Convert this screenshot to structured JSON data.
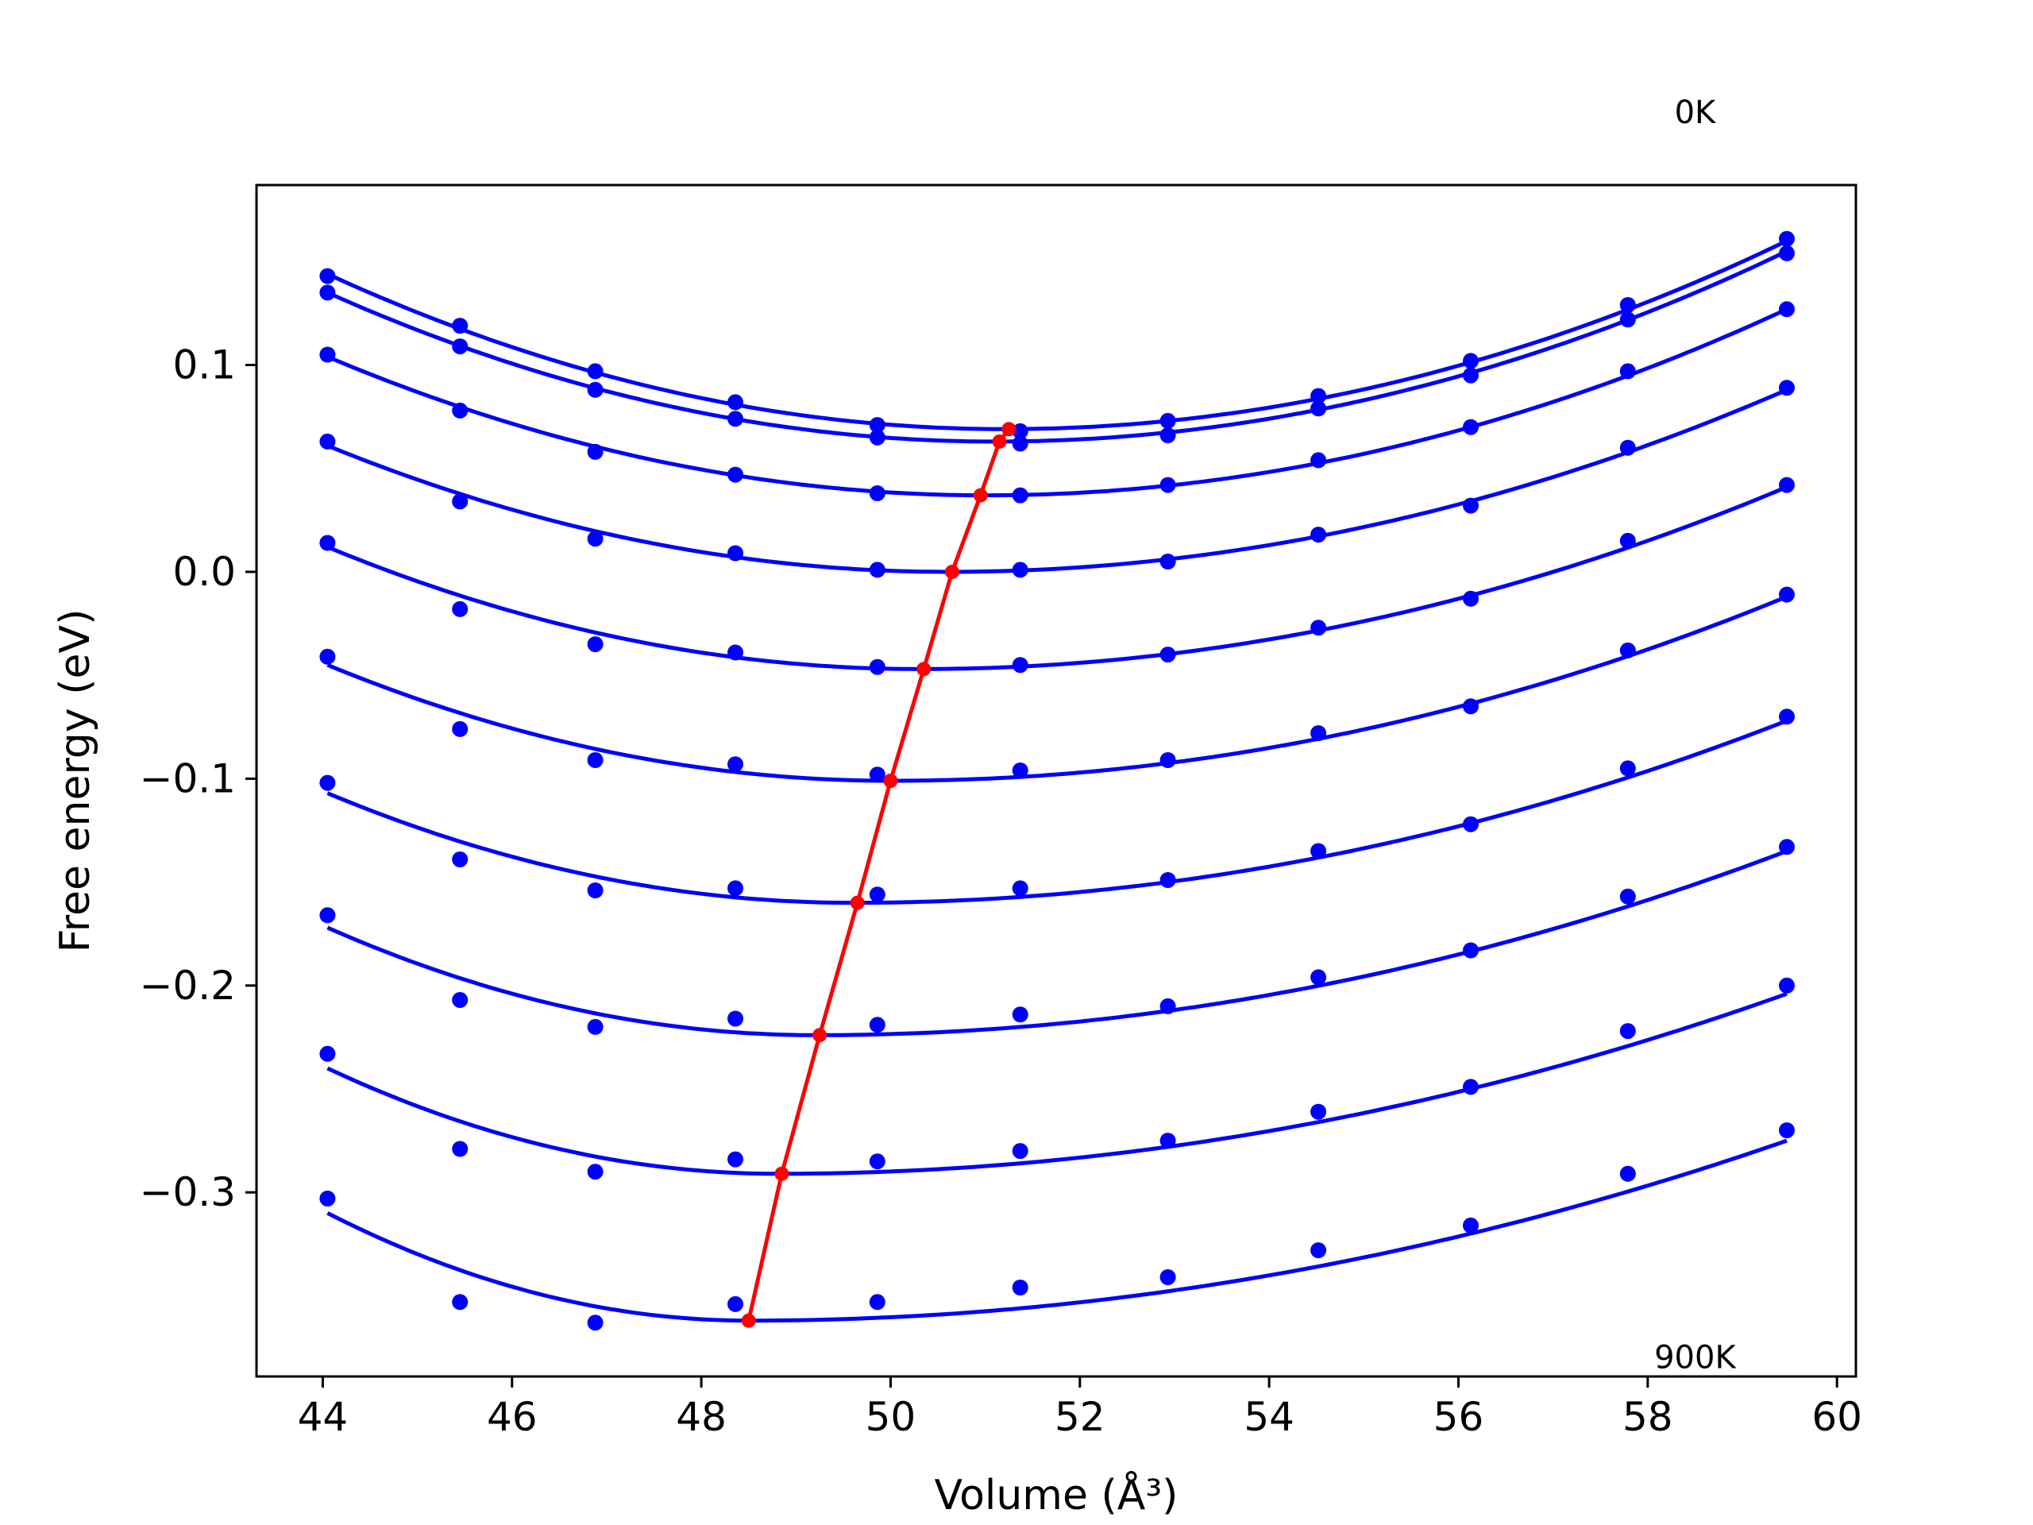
{
  "chart_data": {
    "type": "line",
    "xlabel": "Volume (Å³)",
    "ylabel": "Free energy (eV)",
    "xlim": [
      43.3,
      60.2
    ],
    "ylim": [
      -0.389,
      0.187
    ],
    "xticks": [
      44,
      46,
      48,
      50,
      52,
      54,
      56,
      58,
      60
    ],
    "xtick_labels": [
      "44",
      "46",
      "48",
      "50",
      "52",
      "54",
      "56",
      "58",
      "60"
    ],
    "yticks": [
      -0.3,
      -0.2,
      -0.1,
      0.0,
      0.1
    ],
    "ytick_labels": [
      "−0.3",
      "−0.2",
      "−0.1",
      "0.0",
      "0.1"
    ],
    "grid": false,
    "annotations": [
      {
        "text": "0K",
        "x": 58.5,
        "y": 0.217
      },
      {
        "text": "900K",
        "x": 58.5,
        "y": -0.385
      }
    ],
    "colors": {
      "curves": "#0000ff",
      "points": "#0000ff",
      "minimum_line": "#ff0000"
    },
    "volumes": [
      44.05,
      45.45,
      46.88,
      48.36,
      49.86,
      51.37,
      52.93,
      54.52,
      56.13,
      57.79,
      59.47
    ],
    "series": [
      {
        "values": [
          0.143,
          0.119,
          0.097,
          0.082,
          0.071,
          0.068,
          0.073,
          0.085,
          0.102,
          0.129,
          0.161
        ],
        "fit_min": [
          51.2,
          0.069
        ],
        "fit_ends": [
          0.144,
          0.16
        ]
      },
      {
        "values": [
          0.135,
          0.109,
          0.088,
          0.074,
          0.065,
          0.062,
          0.066,
          0.079,
          0.095,
          0.122,
          0.154
        ],
        "fit_min": [
          51.1,
          0.063
        ],
        "fit_ends": [
          0.135,
          0.155
        ]
      },
      {
        "values": [
          0.105,
          0.078,
          0.058,
          0.047,
          0.038,
          0.037,
          0.042,
          0.054,
          0.07,
          0.097,
          0.127
        ],
        "fit_min": [
          51.0,
          0.037
        ],
        "fit_ends": [
          0.104,
          0.127
        ]
      },
      {
        "values": [
          0.063,
          0.034,
          0.016,
          0.009,
          0.001,
          0.001,
          0.005,
          0.018,
          0.032,
          0.06,
          0.089
        ],
        "fit_min": [
          50.6,
          0.0
        ],
        "fit_ends": [
          0.061,
          0.088
        ]
      },
      {
        "values": [
          0.014,
          -0.018,
          -0.035,
          -0.039,
          -0.046,
          -0.045,
          -0.04,
          -0.027,
          -0.013,
          0.015,
          0.042
        ],
        "fit_min": [
          50.3,
          -0.047
        ],
        "fit_ends": [
          0.012,
          0.041
        ]
      },
      {
        "values": [
          -0.041,
          -0.076,
          -0.091,
          -0.093,
          -0.098,
          -0.096,
          -0.091,
          -0.078,
          -0.065,
          -0.038,
          -0.011
        ],
        "fit_min": [
          50.0,
          -0.101
        ],
        "fit_ends": [
          -0.045,
          -0.012
        ]
      },
      {
        "values": [
          -0.102,
          -0.139,
          -0.154,
          -0.153,
          -0.156,
          -0.153,
          -0.149,
          -0.135,
          -0.122,
          -0.095,
          -0.07
        ],
        "fit_min": [
          49.6,
          -0.16
        ],
        "fit_ends": [
          -0.107,
          -0.072
        ]
      },
      {
        "values": [
          -0.166,
          -0.207,
          -0.22,
          -0.216,
          -0.219,
          -0.214,
          -0.21,
          -0.196,
          -0.183,
          -0.157,
          -0.133
        ],
        "fit_min": [
          49.2,
          -0.224
        ],
        "fit_ends": [
          -0.172,
          -0.135
        ]
      },
      {
        "values": [
          -0.233,
          -0.279,
          -0.29,
          -0.284,
          -0.285,
          -0.28,
          -0.275,
          -0.261,
          -0.249,
          -0.222,
          -0.2
        ],
        "fit_min": [
          48.8,
          -0.291
        ],
        "fit_ends": [
          -0.24,
          -0.204
        ]
      },
      {
        "values": [
          -0.303,
          -0.353,
          -0.363,
          -0.354,
          -0.353,
          -0.346,
          -0.341,
          -0.328,
          -0.316,
          -0.291,
          -0.27
        ],
        "fit_min": [
          48.5,
          -0.362
        ],
        "fit_ends": [
          -0.31,
          -0.275
        ]
      }
    ],
    "minimum_line": {
      "x": [
        51.25,
        51.15,
        50.95,
        50.65,
        50.35,
        50.0,
        49.65,
        49.25,
        48.85,
        48.5
      ],
      "y": [
        0.069,
        0.063,
        0.037,
        0.0,
        -0.047,
        -0.101,
        -0.16,
        -0.224,
        -0.291,
        -0.362
      ]
    }
  }
}
